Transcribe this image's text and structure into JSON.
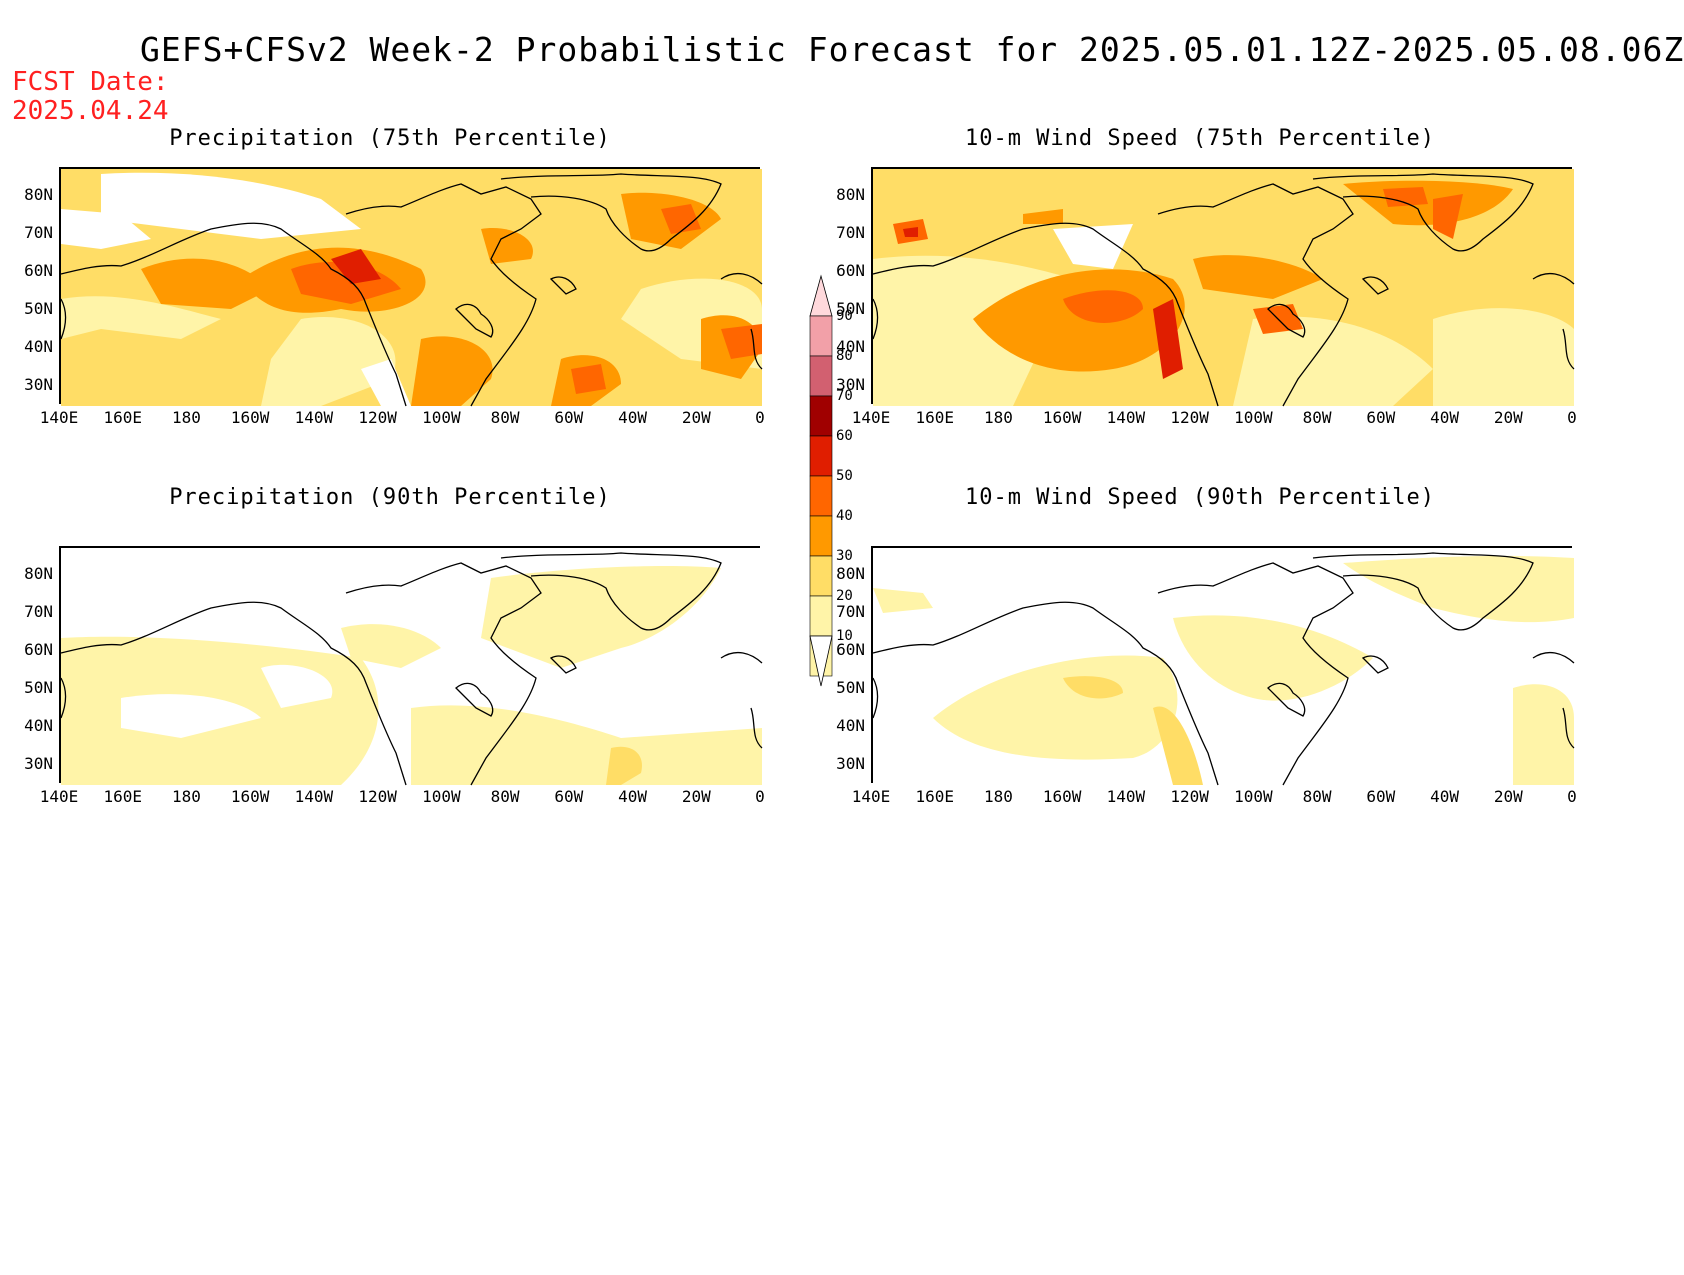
{
  "title": "GEFS+CFSv2 Week-2 Probabilistic Forecast for 2025.05.01.12Z-2025.05.08.06Z",
  "fcst_date_label": "FCST Date:",
  "fcst_date": "2025.04.24",
  "panels": [
    {
      "title": "Precipitation (75th Percentile)"
    },
    {
      "title": "10-m Wind Speed (75th Percentile)"
    },
    {
      "title": "Precipitation (90th Percentile)"
    },
    {
      "title": "10-m Wind Speed (90th Percentile)"
    }
  ],
  "lat_labels": [
    "80N",
    "70N",
    "60N",
    "50N",
    "40N",
    "30N"
  ],
  "lon_labels": [
    "140E",
    "160E",
    "180",
    "160W",
    "140W",
    "120W",
    "100W",
    "80W",
    "60W",
    "40W",
    "20W",
    "0"
  ],
  "colorbar": {
    "levels": [
      "90",
      "80",
      "70",
      "60",
      "50",
      "40",
      "30",
      "20",
      "10"
    ],
    "colors": [
      "#ffd9dc",
      "#f2a0a8",
      "#d26070",
      "#a00000",
      "#e01e00",
      "#ff6600",
      "#ff9900",
      "#ffdd66",
      "#fff4a8"
    ]
  }
}
